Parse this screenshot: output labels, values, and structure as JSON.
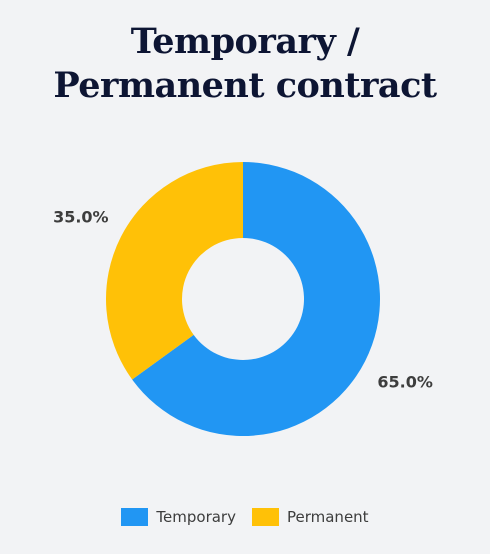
{
  "chart_data": {
    "type": "pie",
    "style": "donut",
    "title_lines": [
      "Temporary /",
      "Permanent contract"
    ],
    "categories": [
      "Temporary",
      "Permanent"
    ],
    "values": [
      65.0,
      35.0
    ],
    "data_labels": [
      "65.0%",
      "35.0%"
    ],
    "colors": [
      "#2196f3",
      "#ffc107"
    ],
    "legend_position": "bottom"
  }
}
